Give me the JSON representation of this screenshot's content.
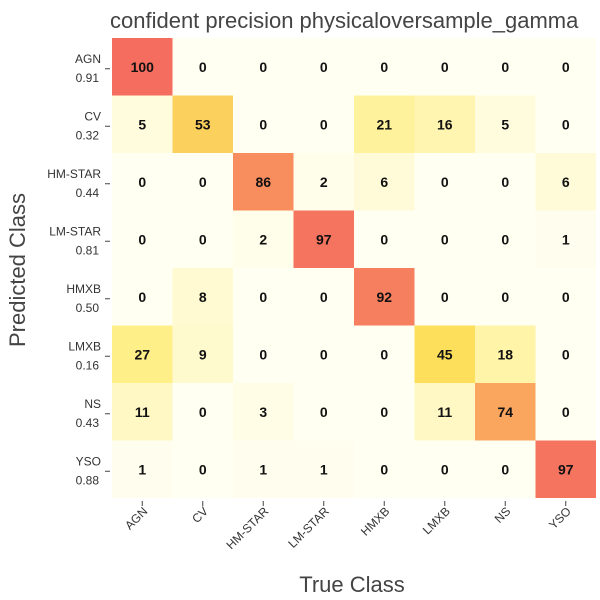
{
  "chart_data": {
    "type": "heatmap",
    "title": "confident precision physicaloversample_gamma",
    "xlabel": "True Class",
    "ylabel": "Predicted Class",
    "columns": [
      "AGN",
      "CV",
      "HM-STAR",
      "LM-STAR",
      "HMXB",
      "LMXB",
      "NS",
      "YSO"
    ],
    "rows": [
      {
        "label": "AGN",
        "score": "0.91",
        "values": [
          100,
          0,
          0,
          0,
          0,
          0,
          0,
          0
        ]
      },
      {
        "label": "CV",
        "score": "0.32",
        "values": [
          5,
          53,
          0,
          0,
          21,
          16,
          5,
          0
        ]
      },
      {
        "label": "HM-STAR",
        "score": "0.44",
        "values": [
          0,
          0,
          86,
          2,
          6,
          0,
          0,
          6
        ]
      },
      {
        "label": "LM-STAR",
        "score": "0.81",
        "values": [
          0,
          0,
          2,
          97,
          0,
          0,
          0,
          1
        ]
      },
      {
        "label": "HMXB",
        "score": "0.50",
        "values": [
          0,
          8,
          0,
          0,
          92,
          0,
          0,
          0
        ]
      },
      {
        "label": "LMXB",
        "score": "0.16",
        "values": [
          27,
          9,
          0,
          0,
          0,
          45,
          18,
          0
        ]
      },
      {
        "label": "NS",
        "score": "0.43",
        "values": [
          11,
          0,
          3,
          0,
          0,
          11,
          74,
          0
        ]
      },
      {
        "label": "YSO",
        "score": "0.88",
        "values": [
          1,
          0,
          1,
          1,
          0,
          0,
          0,
          97
        ]
      }
    ],
    "value_range": [
      0,
      100
    ],
    "colormap": [
      "#fffff2",
      "#fff3a0",
      "#ffe85a",
      "#fbc35f",
      "#f99a5e",
      "#f46d5f"
    ]
  }
}
